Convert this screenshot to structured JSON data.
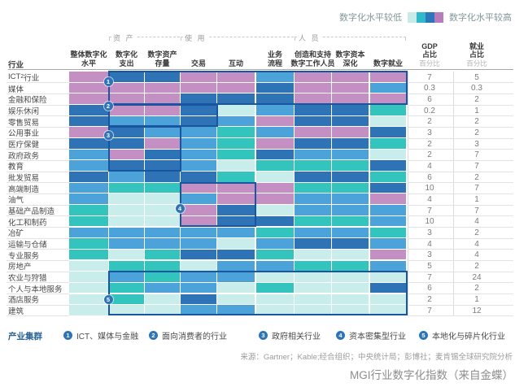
{
  "caption": "MGI行业数字化指数（来自金蝶）",
  "source": "来源：Gartner；Kable;经合组织；中央统计局；彭博社；麦肯锡全球研究院分析",
  "chart_data": {
    "type": "heatmap",
    "title": "MGI行业数字化指数（来自金蝶）",
    "scale": {
      "low_label": "数字化水平较低",
      "high_label": "数字化水平较高",
      "legend_swatches": [
        "#c6ebe9",
        "#2fb9c9",
        "#2b76bc",
        "#b97cbb"
      ],
      "levels": 5,
      "level_colors": {
        "1": "#c8edeb",
        "2": "#33c4be",
        "3": "#4ba3d9",
        "4": "#2d73b5",
        "5": "#c48fc3"
      }
    },
    "industry_header": "行业",
    "groups": [
      {
        "label": "资 产",
        "from": 1,
        "to": 2
      },
      {
        "label": "使 用",
        "from": 3,
        "to": 5
      },
      {
        "label": "人 员",
        "from": 6,
        "to": 8
      }
    ],
    "columns": [
      "整体数字化\n水平",
      "数字化\n支出",
      "数字资产\n存量",
      "交易",
      "互动",
      "业务\n流程",
      "创造和支持\n数字工作人员",
      "数字资本\n深化",
      "数字就业"
    ],
    "gdp_col": {
      "lines": [
        "GDP",
        "占比"
      ],
      "unit": "百分比"
    },
    "emp_col": {
      "lines": [
        "就业",
        "占比"
      ],
      "unit": "百分比"
    },
    "rows": [
      {
        "industry": "ICT行业",
        "pre": "ICT",
        "sup": "2",
        "post": " 行业",
        "levels": [
          5,
          4,
          4,
          5,
          5,
          3,
          5,
          5,
          5
        ],
        "gdp_pct": "7",
        "employment_pct": "5"
      },
      {
        "industry": "媒体",
        "levels": [
          5,
          5,
          5,
          5,
          5,
          4,
          5,
          5,
          3
        ],
        "gdp_pct": "0.3",
        "employment_pct": "0.3"
      },
      {
        "industry": "金融和保险",
        "levels": [
          5,
          5,
          5,
          4,
          4,
          4,
          5,
          5,
          5
        ],
        "gdp_pct": "6",
        "employment_pct": "2"
      },
      {
        "industry": "娱乐休闲",
        "levels": [
          4,
          5,
          5,
          4,
          1,
          3,
          4,
          4,
          2
        ],
        "gdp_pct": "0.2",
        "employment_pct": "1"
      },
      {
        "industry": "零售贸易",
        "levels": [
          4,
          3,
          3,
          4,
          3,
          5,
          4,
          4,
          1
        ],
        "gdp_pct": "2",
        "employment_pct": "2"
      },
      {
        "industry": "公用事业",
        "levels": [
          5,
          4,
          3,
          3,
          2,
          3,
          5,
          5,
          4
        ],
        "gdp_pct": "3",
        "employment_pct": "2"
      },
      {
        "industry": "医疗保健",
        "levels": [
          4,
          4,
          5,
          3,
          2,
          5,
          4,
          4,
          2
        ],
        "gdp_pct": "2",
        "employment_pct": "3"
      },
      {
        "industry": "政府政务",
        "levels": [
          3,
          5,
          4,
          3,
          2,
          4,
          3,
          3,
          1
        ],
        "gdp_pct": "2",
        "employment_pct": "7"
      },
      {
        "industry": "教育",
        "levels": [
          3,
          4,
          4,
          3,
          1,
          2,
          2,
          2,
          4
        ],
        "gdp_pct": "4",
        "employment_pct": "7"
      },
      {
        "industry": "批发贸易",
        "levels": [
          4,
          3,
          4,
          4,
          2,
          1,
          4,
          4,
          2
        ],
        "gdp_pct": "6",
        "employment_pct": "2"
      },
      {
        "industry": "高端制造",
        "levels": [
          3,
          2,
          2,
          5,
          5,
          5,
          2,
          2,
          4
        ],
        "gdp_pct": "10",
        "employment_pct": "7"
      },
      {
        "industry": "油气",
        "levels": [
          3,
          1,
          1,
          3,
          5,
          5,
          3,
          3,
          5
        ],
        "gdp_pct": "4",
        "employment_pct": "1"
      },
      {
        "industry": "基础产品制造",
        "levels": [
          2,
          1,
          1,
          5,
          4,
          1,
          3,
          3,
          3
        ],
        "gdp_pct": "7",
        "employment_pct": "7"
      },
      {
        "industry": "化工和制药",
        "levels": [
          2,
          1,
          1,
          5,
          4,
          4,
          2,
          2,
          3
        ],
        "gdp_pct": "10",
        "employment_pct": "4"
      },
      {
        "industry": "冶矿",
        "levels": [
          3,
          3,
          3,
          3,
          3,
          2,
          3,
          3,
          2
        ],
        "gdp_pct": "3",
        "employment_pct": "2"
      },
      {
        "industry": "运输与仓储",
        "levels": [
          2,
          3,
          3,
          3,
          1,
          3,
          4,
          4,
          3
        ],
        "gdp_pct": "4",
        "employment_pct": "4"
      },
      {
        "industry": "专业服务",
        "levels": [
          2,
          1,
          2,
          4,
          4,
          2,
          1,
          1,
          5
        ],
        "gdp_pct": "3",
        "employment_pct": "4"
      },
      {
        "industry": "房地产",
        "levels": [
          1,
          2,
          2,
          1,
          3,
          3,
          2,
          2,
          3
        ],
        "gdp_pct": "5",
        "employment_pct": "2"
      },
      {
        "industry": "农业与狩猎",
        "levels": [
          1,
          3,
          2,
          3,
          3,
          1,
          1,
          1,
          1
        ],
        "gdp_pct": "7",
        "employment_pct": "24"
      },
      {
        "industry": "个人与本地服务",
        "levels": [
          1,
          2,
          3,
          3,
          1,
          2,
          1,
          1,
          4
        ],
        "gdp_pct": "6",
        "employment_pct": "2"
      },
      {
        "industry": "酒店服务",
        "levels": [
          1,
          2,
          1,
          4,
          1,
          1,
          1,
          1,
          1
        ],
        "gdp_pct": "2",
        "employment_pct": "1"
      },
      {
        "industry": "建筑",
        "levels": [
          1,
          1,
          1,
          3,
          3,
          1,
          1,
          1,
          1
        ],
        "gdp_pct": "7",
        "employment_pct": "12"
      }
    ],
    "clusters": {
      "title": "产业集群",
      "items": [
        {
          "num": "1",
          "label": "ICT、媒体与金融",
          "rows": [
            0,
            2
          ],
          "cols": [
            1,
            8
          ]
        },
        {
          "num": "2",
          "label": "面向消费者的行业",
          "rows": [
            3,
            4
          ],
          "cols": [
            1,
            3
          ]
        },
        {
          "num": "3",
          "label": "政府相关行业",
          "rows": [
            5,
            8
          ],
          "cols": [
            1,
            2
          ]
        },
        {
          "num": "4",
          "label": "资本密集型行业",
          "rows": [
            10,
            13
          ],
          "cols": [
            3,
            4
          ]
        },
        {
          "num": "5",
          "label": "本地化与碎片化行业",
          "rows": [
            18,
            21
          ],
          "cols": [
            1,
            8
          ]
        }
      ]
    }
  }
}
